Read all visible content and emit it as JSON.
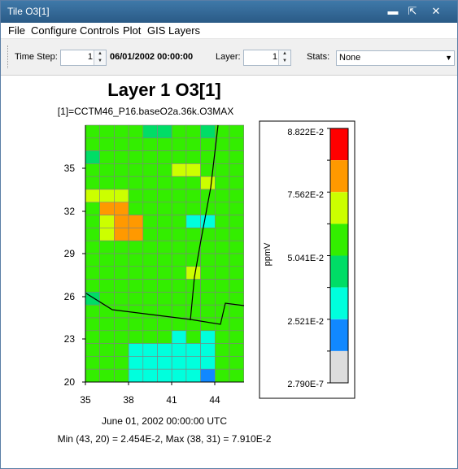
{
  "window": {
    "title": "Tile O3[1]"
  },
  "menu": [
    "File",
    "Configure",
    "Controls",
    "Plot",
    "GIS Layers"
  ],
  "toolbar": {
    "time_step_label": "Time Step:",
    "time_step_value": "1",
    "datetime": "06/01/2002 00:00:00",
    "layer_label": "Layer:",
    "layer_value": "1",
    "stats_label": "Stats:",
    "stats_value": "None"
  },
  "icons": {
    "minimize": "minimize-icon",
    "undock": "undock-icon",
    "close": "close-icon"
  },
  "chart_data": {
    "type": "heatmap",
    "title": "Layer 1 O3[1]",
    "subtitle": "[1]=CCTM46_P16.baseO2a.36k.O3MAX",
    "footer_date": "June 01, 2002 00:00:00 UTC",
    "footer_stats": "Min (43, 20) = 2.454E-2, Max (38, 31) = 7.910E-2",
    "x_ticks": [
      "35",
      "38",
      "41",
      "44"
    ],
    "y_ticks": [
      "20",
      "23",
      "26",
      "29",
      "32",
      "35"
    ],
    "legend_label": "ppmV",
    "legend_ticks": [
      "8.822E-2",
      "7.562E-2",
      "5.041E-2",
      "2.521E-2",
      "2.790E-7"
    ],
    "legend_colors": [
      "#ff0000",
      "#ff9900",
      "#ccff00",
      "#33ee00",
      "#00dd66",
      "#00ffdd",
      "#1188ff",
      "#dddddd"
    ],
    "grid_rows": [
      [
        "G",
        "G",
        "G",
        "G",
        "M",
        "M",
        "G",
        "G",
        "M",
        "G",
        "G"
      ],
      [
        "G",
        "G",
        "G",
        "G",
        "G",
        "G",
        "G",
        "G",
        "G",
        "G",
        "G"
      ],
      [
        "M",
        "G",
        "G",
        "G",
        "G",
        "G",
        "G",
        "G",
        "G",
        "G",
        "G"
      ],
      [
        "G",
        "G",
        "G",
        "G",
        "G",
        "G",
        "Y",
        "Y",
        "G",
        "G",
        "G"
      ],
      [
        "G",
        "G",
        "G",
        "G",
        "G",
        "G",
        "G",
        "G",
        "Y",
        "G",
        "G"
      ],
      [
        "Y",
        "Y",
        "Y",
        "G",
        "G",
        "G",
        "G",
        "G",
        "G",
        "G",
        "G"
      ],
      [
        "G",
        "O",
        "O",
        "G",
        "G",
        "G",
        "G",
        "G",
        "G",
        "G",
        "G"
      ],
      [
        "G",
        "Y",
        "O",
        "O",
        "G",
        "G",
        "G",
        "C",
        "C",
        "G",
        "G"
      ],
      [
        "G",
        "Y",
        "O",
        "O",
        "G",
        "G",
        "G",
        "G",
        "G",
        "G",
        "G"
      ],
      [
        "G",
        "G",
        "G",
        "G",
        "G",
        "G",
        "G",
        "G",
        "G",
        "G",
        "G"
      ],
      [
        "G",
        "G",
        "G",
        "G",
        "G",
        "G",
        "G",
        "G",
        "G",
        "G",
        "G"
      ],
      [
        "G",
        "G",
        "G",
        "G",
        "G",
        "G",
        "G",
        "Y",
        "G",
        "G",
        "G"
      ],
      [
        "G",
        "G",
        "G",
        "G",
        "G",
        "G",
        "G",
        "G",
        "G",
        "G",
        "G"
      ],
      [
        "M",
        "G",
        "G",
        "G",
        "G",
        "G",
        "G",
        "G",
        "G",
        "G",
        "G"
      ],
      [
        "G",
        "G",
        "G",
        "G",
        "G",
        "G",
        "G",
        "G",
        "G",
        "G",
        "G"
      ],
      [
        "G",
        "G",
        "G",
        "G",
        "G",
        "G",
        "G",
        "G",
        "G",
        "G",
        "G"
      ],
      [
        "G",
        "G",
        "G",
        "G",
        "G",
        "G",
        "C",
        "G",
        "C",
        "G",
        "G"
      ],
      [
        "G",
        "G",
        "G",
        "C",
        "C",
        "C",
        "C",
        "C",
        "C",
        "G",
        "G"
      ],
      [
        "G",
        "G",
        "G",
        "C",
        "C",
        "C",
        "C",
        "C",
        "C",
        "G",
        "G"
      ],
      [
        "G",
        "G",
        "G",
        "C",
        "C",
        "C",
        "C",
        "C",
        "B",
        "G",
        "G"
      ]
    ],
    "cell_colors": {
      "G": "#33ee00",
      "M": "#00dd66",
      "Y": "#ccff00",
      "O": "#ff9900",
      "C": "#00ffdd",
      "B": "#1188ff"
    }
  }
}
